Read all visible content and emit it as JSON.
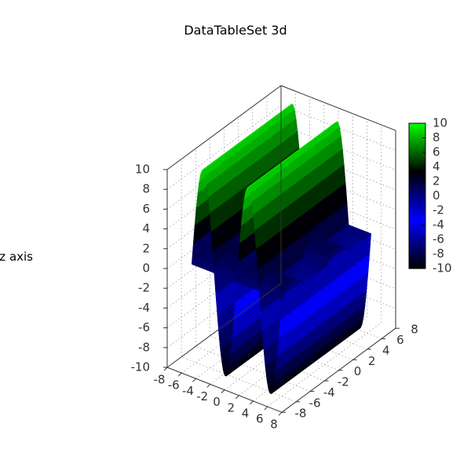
{
  "chart_data": {
    "type": "surface3d",
    "title": "DataTableSet 3d",
    "xlabel": "",
    "ylabel": "",
    "zlabel": "z axis",
    "xlim": [
      -8,
      8
    ],
    "ylim": [
      -8,
      8
    ],
    "zlim": [
      -10,
      10
    ],
    "x_ticks": [
      "-8",
      "-6",
      "-4",
      "-2",
      "0",
      "2",
      "4",
      "6",
      "8"
    ],
    "y_ticks": [
      "-8",
      "-6",
      "-4",
      "-2",
      "0",
      "2",
      "4",
      "6",
      "8"
    ],
    "z_ticks": [
      "-10",
      "-8",
      "-6",
      "-4",
      "-2",
      "0",
      "2",
      "4",
      "6",
      "8",
      "10"
    ],
    "colorbar_ticks": [
      "-10",
      "-8",
      "-6",
      "-4",
      "-2",
      "0",
      "2",
      "4",
      "6",
      "8",
      "10"
    ],
    "colorbar_range": [
      -10,
      10
    ],
    "colormap": [
      "#000000",
      "#0000ff",
      "#000000",
      "#00ff00"
    ],
    "grid": true,
    "series": [
      {
        "type": "surface",
        "x_range": [
          -6.28,
          6.28
        ],
        "y_range": [
          -6.28,
          6.28
        ],
        "x": [
          -6.28,
          -5.65,
          -5.02,
          -4.4,
          -3.77,
          -3.14,
          -2.51,
          -1.88,
          -1.26,
          -0.63,
          0,
          0.63,
          1.26,
          1.88,
          2.51,
          3.14,
          3.77,
          4.4,
          5.02,
          5.65,
          6.28
        ],
        "y_profile": [
          0,
          5.88,
          9.51,
          9.51,
          5.88,
          0,
          -5.88,
          -9.51,
          -9.51,
          -5.88,
          0,
          5.88,
          9.51,
          9.51,
          5.88,
          0,
          -5.88,
          -9.51,
          -9.51,
          -5.88,
          0
        ]
      },
      {
        "type": "surface",
        "x_range": [
          -6.28,
          6.28
        ],
        "y_range": [
          -6.28,
          6.28
        ],
        "y": [
          -6.28,
          -5.65,
          -5.02,
          -4.4,
          -3.77,
          -3.14,
          -2.51,
          -1.88,
          -1.26,
          -0.63,
          0,
          0.63,
          1.26,
          1.88,
          2.51,
          3.14,
          3.77,
          4.4,
          5.02,
          5.65,
          6.28
        ],
        "z_profile": [
          0,
          0.59,
          0.95,
          0.95,
          0.59,
          0,
          -0.59,
          -0.95,
          -0.95,
          -0.59,
          0,
          0.59,
          0.95,
          0.95,
          0.59,
          0,
          -0.59,
          -0.95,
          -0.95,
          -0.59,
          0
        ]
      }
    ]
  }
}
